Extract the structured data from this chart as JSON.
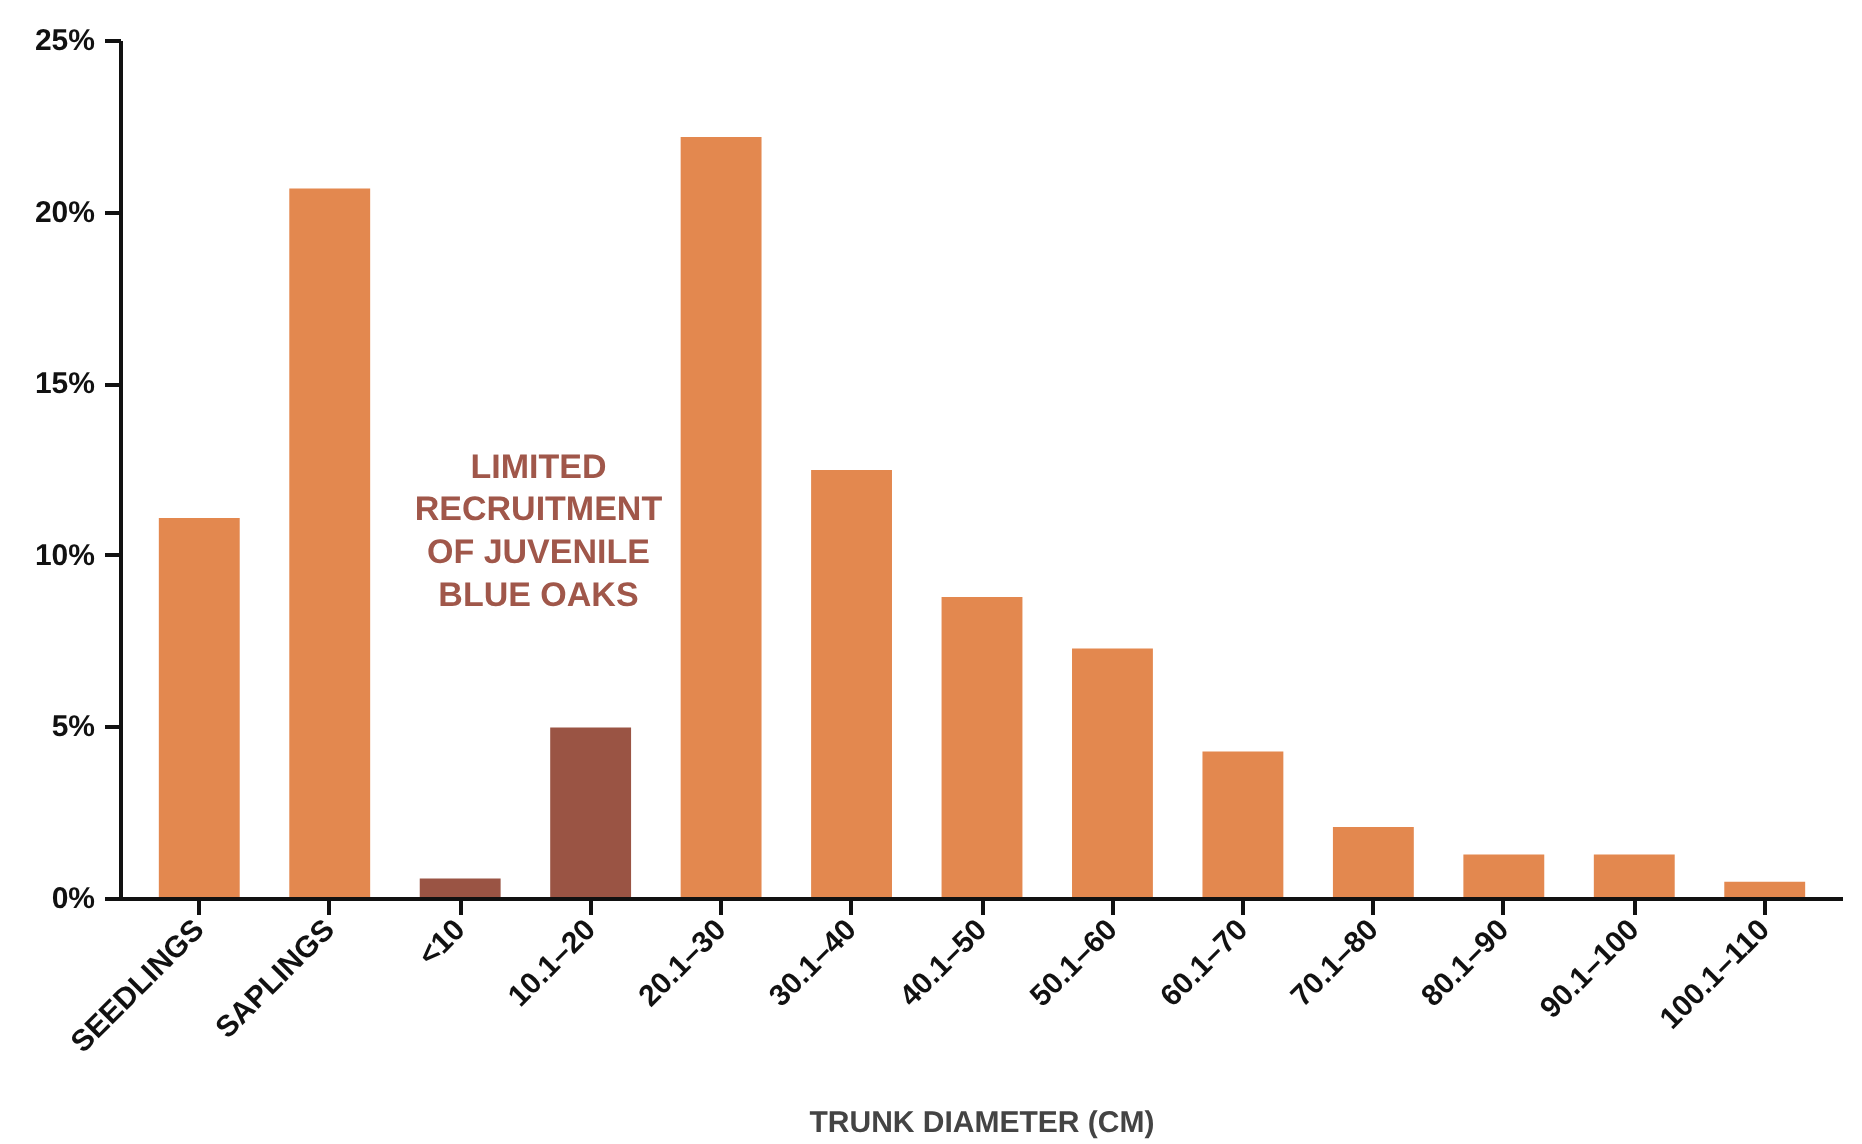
{
  "chart_data": {
    "type": "bar",
    "xlabel": "TRUNK DIAMETER (CM)",
    "categories": [
      "SEEDLINGS",
      "SAPLINGS",
      "<10",
      "10.1–20",
      "20.1–30",
      "30.1–40",
      "40.1–50",
      "50.1–60",
      "60.1–70",
      "70.1–80",
      "80.1–90",
      "90.1–100",
      "100.1–110"
    ],
    "values": [
      11.1,
      20.7,
      0.6,
      5.0,
      22.2,
      12.5,
      8.8,
      7.3,
      4.3,
      2.1,
      1.3,
      1.3,
      0.5
    ],
    "colors": [
      "#e3884f",
      "#e3884f",
      "#9a5444",
      "#9a5444",
      "#e3884f",
      "#e3884f",
      "#e3884f",
      "#e3884f",
      "#e3884f",
      "#e3884f",
      "#e3884f",
      "#e3884f",
      "#e3884f"
    ],
    "ylim": [
      0,
      25
    ],
    "yticks": [
      {
        "value": 0,
        "label": "0%"
      },
      {
        "value": 5,
        "label": "5%"
      },
      {
        "value": 10,
        "label": "10%"
      },
      {
        "value": 15,
        "label": "15%"
      },
      {
        "value": 20,
        "label": "20%"
      },
      {
        "value": 25,
        "label": "25%"
      }
    ],
    "annotations": [
      "LIMITED\nRECRUITMENT\nOF JUVENILE\nBLUE OAKS"
    ],
    "grid": false
  }
}
